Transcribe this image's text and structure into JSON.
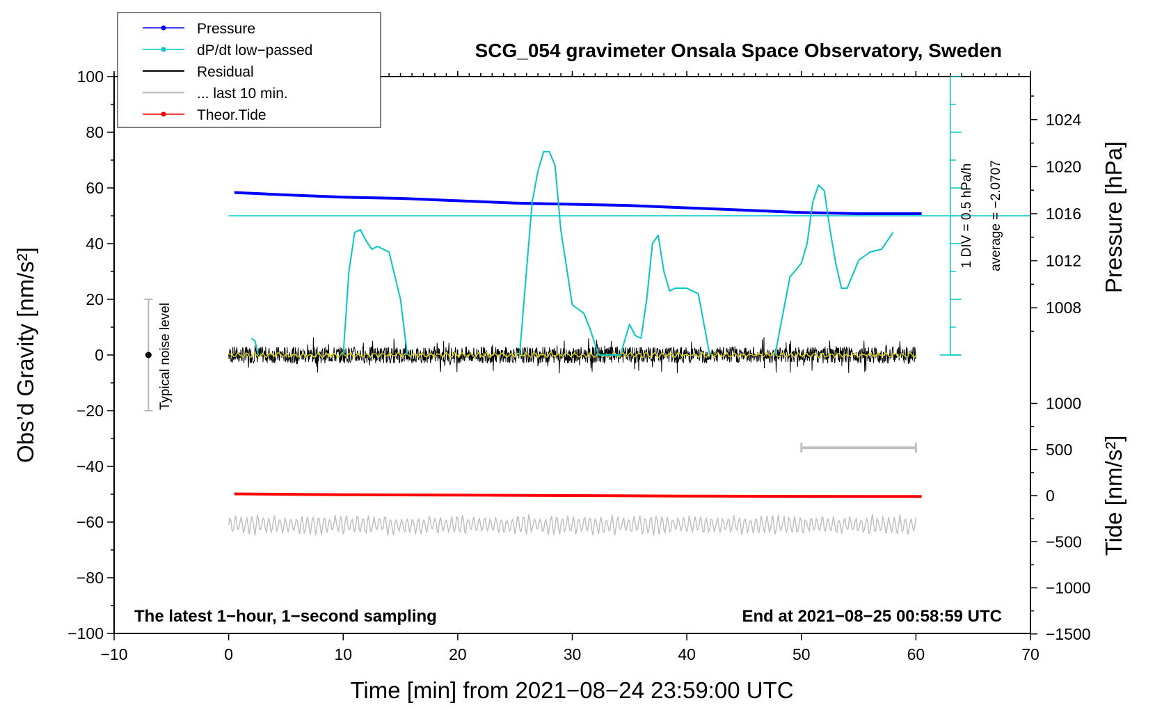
{
  "chart_data": {
    "type": "line",
    "title": "SCG_054 gravimeter Onsala Space Observatory, Sweden",
    "xlabel": "Time [min] from 2021−08−24 23:59:00 UTC",
    "ylabel": "Obs’d Gravity [nm/s²]",
    "y2label_pressure": "Pressure [hPa]",
    "y2label_tide": "Tide [nm/s²]",
    "xlim": [
      -10,
      70
    ],
    "ylim": [
      -100,
      100
    ],
    "xticks": [
      "−10",
      "0",
      "10",
      "20",
      "30",
      "40",
      "50",
      "60",
      "70"
    ],
    "yticks": [
      "−100",
      "−80",
      "−60",
      "−40",
      "−20",
      "0",
      "20",
      "40",
      "60",
      "80",
      "100"
    ],
    "pressure_axis": {
      "ticks": [
        "1008",
        "1012",
        "1016",
        "1020",
        "1024"
      ],
      "values": [
        1008,
        1012,
        1016,
        1020,
        1024
      ]
    },
    "tide_axis": {
      "ticks": [
        "−1500",
        "−1000",
        "−500",
        "0",
        "500",
        "1000"
      ],
      "values": [
        -1500,
        -1000,
        -500,
        0,
        500,
        1000
      ]
    },
    "legend": {
      "placement": "top-left",
      "entries": [
        {
          "name": "Pressure",
          "color": "#0000ff",
          "marker": true
        },
        {
          "name": "dP/dt low−passed",
          "color": "#00c8c8",
          "marker": true
        },
        {
          "name": "Residual",
          "color": "#000000",
          "marker": false
        },
        {
          "name": "... last 10 min.",
          "color": "#c0c0c0",
          "marker": false
        },
        {
          "name": "Theor.Tide",
          "color": "#ff0000",
          "marker": true
        }
      ]
    },
    "series": [
      {
        "name": "Pressure",
        "color": "#0000ff",
        "axis": "pressure",
        "x": [
          0.5,
          5,
          10,
          15,
          20,
          25,
          30,
          35,
          40,
          45,
          50,
          55,
          60.5
        ],
        "y": [
          1017.8,
          1017.6,
          1017.4,
          1017.3,
          1017.1,
          1016.9,
          1016.8,
          1016.7,
          1016.5,
          1016.3,
          1016.1,
          1016.0,
          1016.0
        ]
      },
      {
        "name": "dP/dt low−passed",
        "color": "#00c8c8",
        "axis": "gravity",
        "x": [
          2.0,
          2.3,
          2.6,
          10,
          10.5,
          11,
          11.5,
          12,
          12.5,
          13,
          14,
          15,
          15.6,
          25.4,
          26,
          26.5,
          27,
          27.5,
          28,
          28.5,
          29,
          30,
          31,
          31.5,
          32.3,
          34.2,
          35,
          35.5,
          36,
          36.5,
          37,
          37.5,
          38,
          38.5,
          39,
          40,
          41,
          42,
          47.7,
          49,
          50,
          50.5,
          51,
          51.5,
          52,
          52.5,
          53,
          53.5,
          54,
          55,
          56,
          57,
          58.0
        ],
        "y": [
          6,
          5,
          0,
          0,
          30,
          44,
          45,
          41,
          38,
          39,
          37,
          20,
          0,
          0,
          30,
          55,
          66,
          73,
          73,
          68,
          45,
          18,
          15,
          10,
          0,
          0,
          11,
          7,
          6,
          20,
          40,
          43,
          30,
          23,
          24,
          24,
          22,
          0,
          0,
          28,
          33,
          40,
          55,
          61,
          59,
          45,
          33,
          24,
          24,
          34,
          37,
          38,
          44
        ]
      },
      {
        "name": "Residual",
        "color": "#000000",
        "axis": "gravity",
        "x": [
          0,
          60
        ],
        "y": [
          0,
          0
        ],
        "noise_amplitude": 3
      },
      {
        "name": "... last 10 min.",
        "color": "#c0c0c0",
        "axis": "gravity",
        "x": [
          0,
          60
        ],
        "y": [
          -61,
          -61
        ],
        "noise_amplitude": 3
      },
      {
        "name": "Theor.Tide",
        "color": "#ff0000",
        "axis": "tide",
        "x": [
          0.5,
          10,
          20,
          30,
          40,
          50,
          60.5
        ],
        "y": [
          19,
          10,
          5,
          0,
          -5,
          -8,
          -10
        ]
      }
    ],
    "annotations": {
      "noise_label": "Typical noise level",
      "noise_range": [
        -20,
        20
      ],
      "div_label": "1 DIV = 0.5 hPa/h",
      "average_label": "average = −2.0707",
      "bottom_left": "The latest 1−hour, 1−second sampling",
      "bottom_right": "End at 2021−08−25 00:58:59 UTC",
      "last10_bar": [
        50,
        60
      ]
    },
    "grid": false
  }
}
